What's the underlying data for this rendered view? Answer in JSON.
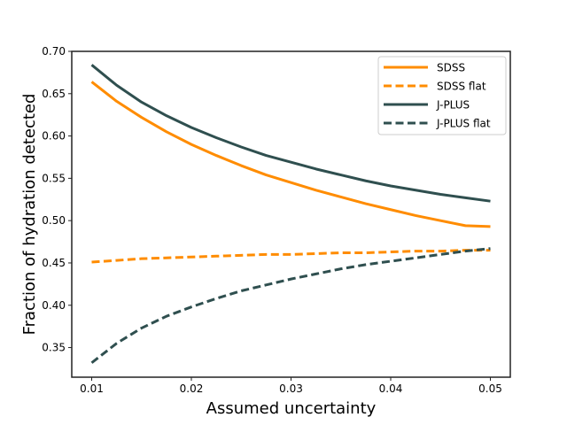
{
  "chart_data": {
    "type": "line",
    "title": "",
    "xlabel": "Assumed uncertainty",
    "ylabel": "Fraction of hydration detected",
    "xlim": [
      0.008,
      0.052
    ],
    "ylim": [
      0.315,
      0.7
    ],
    "xticks": [
      0.01,
      0.02,
      0.03,
      0.04,
      0.05
    ],
    "xtick_labels": [
      "0.01",
      "0.02",
      "0.03",
      "0.04",
      "0.05"
    ],
    "yticks": [
      0.35,
      0.4,
      0.45,
      0.5,
      0.55,
      0.6,
      0.65,
      0.7
    ],
    "ytick_labels": [
      "0.35",
      "0.40",
      "0.45",
      "0.50",
      "0.55",
      "0.60",
      "0.65",
      "0.70"
    ],
    "grid": false,
    "legend_position": "top-right",
    "x": [
      0.01,
      0.0125,
      0.015,
      0.0175,
      0.02,
      0.0225,
      0.025,
      0.0275,
      0.03,
      0.0325,
      0.035,
      0.0375,
      0.04,
      0.0425,
      0.045,
      0.0475,
      0.05
    ],
    "series": [
      {
        "name": "SDSS",
        "color": "#ff8c00",
        "style": "solid",
        "values": [
          0.664,
          0.641,
          0.622,
          0.605,
          0.59,
          0.577,
          0.565,
          0.554,
          0.545,
          0.536,
          0.528,
          0.52,
          0.513,
          0.506,
          0.5,
          0.494,
          0.493
        ]
      },
      {
        "name": "SDSS flat",
        "color": "#ff8c00",
        "style": "dashed",
        "values": [
          0.451,
          0.453,
          0.455,
          0.456,
          0.457,
          0.458,
          0.459,
          0.46,
          0.46,
          0.461,
          0.462,
          0.462,
          0.463,
          0.464,
          0.464,
          0.465,
          0.465
        ]
      },
      {
        "name": "J-PLUS",
        "color": "#2f4f4f",
        "style": "solid",
        "values": [
          0.684,
          0.66,
          0.64,
          0.624,
          0.61,
          0.598,
          0.587,
          0.577,
          0.569,
          0.561,
          0.554,
          0.547,
          0.541,
          0.536,
          0.531,
          0.527,
          0.523
        ]
      },
      {
        "name": "J-PLUS flat",
        "color": "#2f4f4f",
        "style": "dashed",
        "values": [
          0.332,
          0.355,
          0.373,
          0.387,
          0.398,
          0.408,
          0.417,
          0.424,
          0.431,
          0.437,
          0.443,
          0.448,
          0.452,
          0.456,
          0.46,
          0.464,
          0.467
        ]
      }
    ]
  }
}
